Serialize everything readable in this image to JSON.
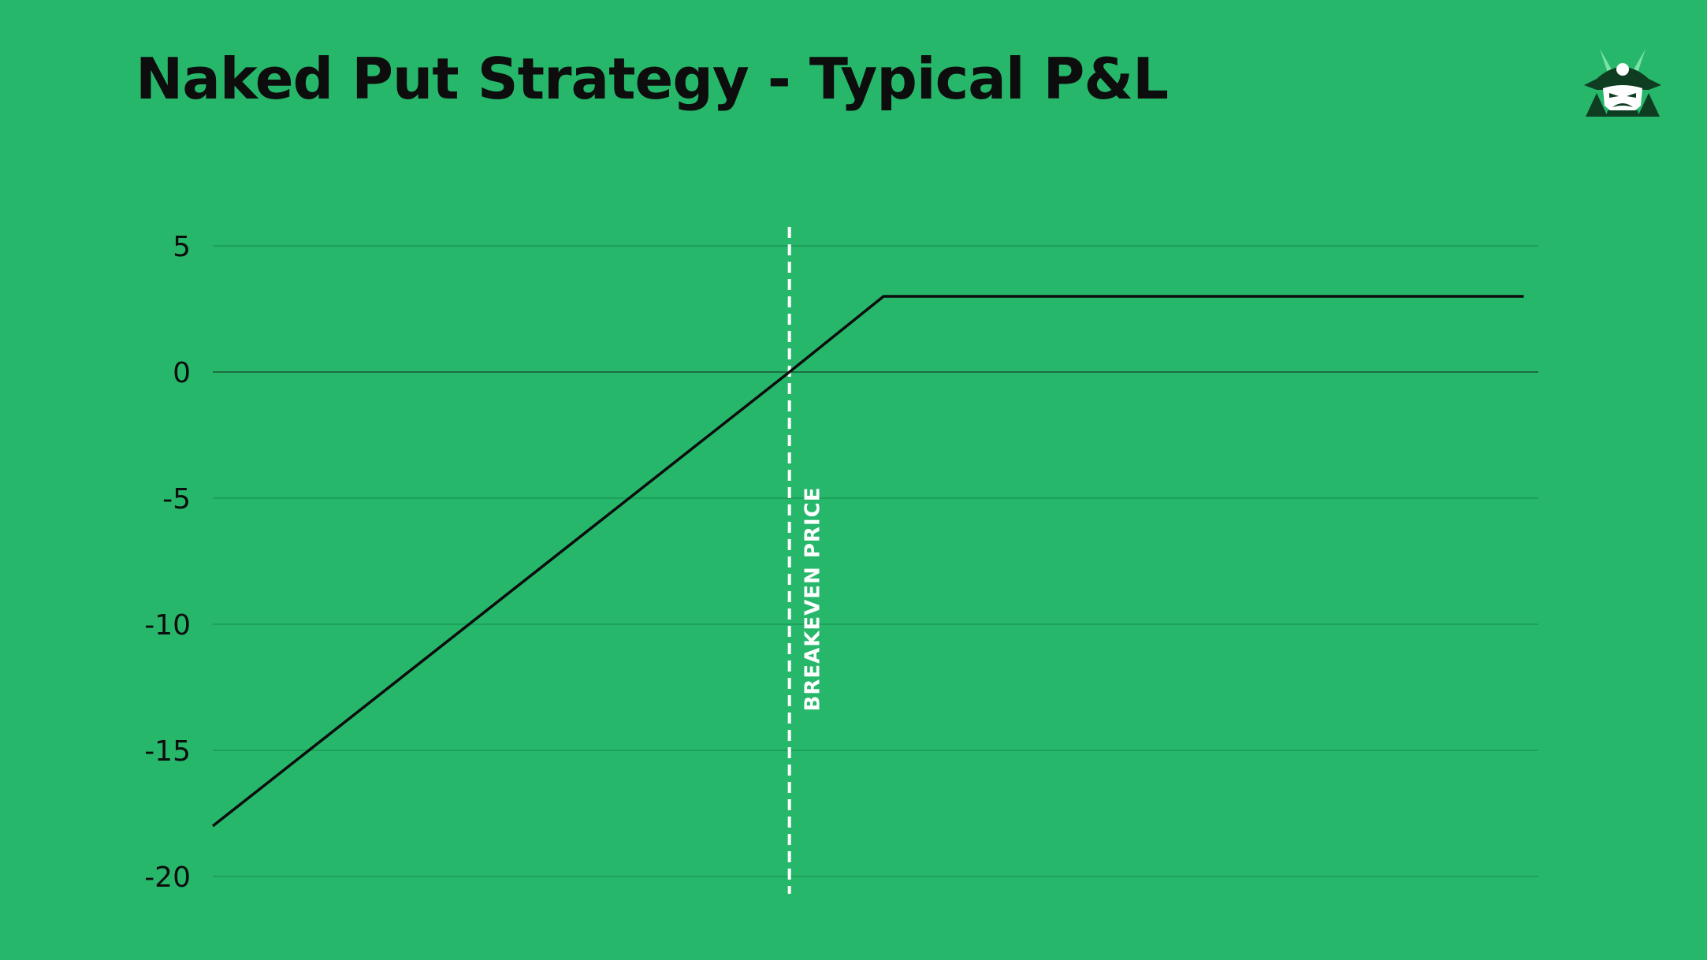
{
  "colors": {
    "background": "#27b76b",
    "line": "#0d0d0d",
    "gridline": "#1c9a57",
    "zero_line": "#1a6f41",
    "marker": "#ffffff",
    "logo_dark": "#0f3d22",
    "logo_light": "#7be3a6"
  },
  "logo": {
    "icon": "samurai-helmet-icon"
  },
  "chart_data": {
    "type": "line",
    "title": "Naked Put Strategy - Typical P&L",
    "xlabel": "",
    "ylabel": "",
    "xlim": [
      0,
      100
    ],
    "ylim": [
      -20,
      5
    ],
    "yticks": [
      5,
      0,
      -5,
      -10,
      -15,
      -20
    ],
    "grid": true,
    "series": [
      {
        "x": [
          0,
          43.5,
          50.6,
          98.9
        ],
        "values": [
          -18,
          0,
          3,
          3
        ]
      }
    ],
    "annotations": [
      {
        "type": "vertical_line",
        "style": "dashed",
        "x": 43.5,
        "label": "BREAKEVEN PRICE"
      }
    ]
  }
}
